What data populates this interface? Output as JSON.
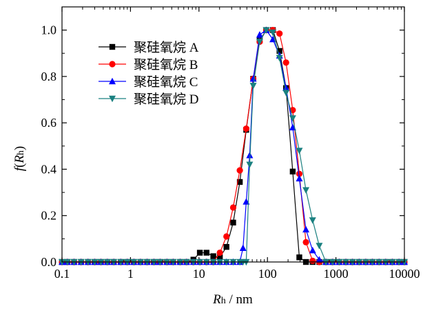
{
  "chart_data": {
    "type": "line",
    "xscale": "log",
    "xlim": [
      0.1,
      10000
    ],
    "ylim": [
      0.0,
      1.1
    ],
    "xticks": [
      0.1,
      1,
      10,
      100,
      1000,
      10000
    ],
    "xtick_labels": [
      "0.1",
      "1",
      "10",
      "100",
      "1000",
      "10000"
    ],
    "yticks": [
      0.0,
      0.2,
      0.4,
      0.6,
      0.8,
      1.0
    ],
    "ytick_labels": [
      "0.0",
      "0.2",
      "0.4",
      "0.6",
      "0.8",
      "1.0"
    ],
    "xlabel": {
      "var": "R",
      "sub": "h",
      "unit": " / nm"
    },
    "ylabel": {
      "f": "f",
      "open": "(",
      "var": "R",
      "sub": "h",
      "close": ")"
    },
    "legend_position": "top-left",
    "series": [
      {
        "name": "聚硅氧烷 A",
        "color": "#000000",
        "marker": "square",
        "x": [
          0.1,
          0.12,
          0.15,
          0.19,
          0.24,
          0.3,
          0.37,
          0.46,
          0.57,
          0.72,
          0.9,
          1.12,
          1.4,
          1.75,
          2.2,
          2.7,
          3.4,
          4.2,
          5.3,
          6.6,
          8.3,
          10.3,
          12.9,
          16.2,
          20.2,
          25.2,
          31.6,
          39.5,
          49,
          62,
          77,
          96,
          120,
          150,
          187,
          234,
          292,
          365,
          457,
          571,
          714,
          893,
          1117,
          1396,
          1745,
          2182,
          2727,
          3409,
          4262,
          5328,
          6660,
          8325,
          10000
        ],
        "y": [
          0,
          0,
          0,
          0,
          0,
          0,
          0,
          0,
          0,
          0,
          0,
          0,
          0,
          0,
          0,
          0,
          0,
          0,
          0,
          0,
          0.01,
          0.04,
          0.04,
          0.025,
          0.02,
          0.065,
          0.17,
          0.345,
          0.57,
          0.79,
          0.955,
          1.0,
          1.0,
          0.91,
          0.75,
          0.39,
          0.02,
          0,
          0,
          0,
          0,
          0,
          0,
          0,
          0,
          0,
          0,
          0,
          0,
          0,
          0,
          0,
          0
        ]
      },
      {
        "name": "聚硅氧烷 B",
        "color": "#ff0000",
        "marker": "circle",
        "x": [
          0.1,
          0.12,
          0.15,
          0.19,
          0.24,
          0.3,
          0.37,
          0.46,
          0.57,
          0.72,
          0.9,
          1.12,
          1.4,
          1.75,
          2.2,
          2.7,
          3.4,
          4.2,
          5.3,
          6.6,
          8.3,
          10.3,
          12.9,
          16.2,
          20.2,
          25.2,
          31.6,
          39.5,
          49,
          62,
          77,
          96,
          120,
          150,
          187,
          234,
          292,
          365,
          457,
          571,
          714,
          893,
          1117,
          1396,
          1745,
          2182,
          2727,
          3409,
          4262,
          5328,
          6660,
          8325,
          10000
        ],
        "y": [
          0,
          0,
          0,
          0,
          0,
          0,
          0,
          0,
          0,
          0,
          0,
          0,
          0,
          0,
          0,
          0,
          0,
          0,
          0,
          0,
          0,
          0,
          0,
          0,
          0.04,
          0.11,
          0.235,
          0.395,
          0.575,
          0.79,
          0.95,
          1.0,
          1.0,
          0.985,
          0.86,
          0.655,
          0.38,
          0.085,
          0.005,
          0,
          0,
          0,
          0,
          0,
          0,
          0,
          0,
          0,
          0,
          0,
          0,
          0,
          0
        ]
      },
      {
        "name": "聚硅氧烷 C",
        "color": "#0000ff",
        "marker": "triangle-up",
        "x": [
          0.1,
          0.12,
          0.15,
          0.19,
          0.24,
          0.3,
          0.37,
          0.46,
          0.57,
          0.72,
          0.9,
          1.12,
          1.4,
          1.75,
          2.2,
          2.7,
          3.4,
          4.2,
          5.3,
          6.6,
          8.3,
          10.3,
          12.9,
          16.2,
          20.2,
          25.2,
          31.6,
          39.5,
          44,
          49,
          55,
          62,
          77,
          96,
          120,
          150,
          187,
          234,
          292,
          365,
          457,
          571,
          714,
          893,
          1117,
          1396,
          1745,
          2182,
          2727,
          3409,
          4262,
          5328,
          6660,
          8325,
          10000
        ],
        "y": [
          0,
          0,
          0,
          0,
          0,
          0,
          0,
          0,
          0,
          0,
          0,
          0,
          0,
          0,
          0,
          0,
          0,
          0,
          0,
          0,
          0,
          0,
          0,
          0,
          0,
          0,
          0,
          0,
          0.06,
          0.26,
          0.46,
          0.79,
          0.98,
          1.0,
          0.96,
          0.89,
          0.75,
          0.58,
          0.36,
          0.14,
          0.05,
          0.01,
          0,
          0,
          0,
          0,
          0,
          0,
          0,
          0,
          0,
          0,
          0,
          0,
          0
        ]
      },
      {
        "name": "聚硅氧烷 D",
        "color": "#1a8080",
        "marker": "triangle-down",
        "x": [
          0.1,
          0.12,
          0.15,
          0.19,
          0.24,
          0.3,
          0.37,
          0.46,
          0.57,
          0.72,
          0.9,
          1.12,
          1.4,
          1.75,
          2.2,
          2.7,
          3.4,
          4.2,
          5.3,
          6.6,
          8.3,
          10.3,
          12.9,
          16.2,
          20.2,
          25.2,
          31.6,
          39.5,
          44,
          49,
          55,
          62,
          77,
          96,
          120,
          150,
          187,
          234,
          292,
          365,
          457,
          571,
          714,
          893,
          1117,
          1396,
          1745,
          2182,
          2727,
          3409,
          4262,
          5328,
          6660,
          8325,
          10000
        ],
        "y": [
          0,
          0,
          0,
          0,
          0,
          0,
          0,
          0,
          0,
          0,
          0,
          0,
          0,
          0,
          0,
          0,
          0,
          0,
          0,
          0,
          0,
          0,
          0,
          0,
          0,
          0,
          0,
          0,
          0,
          0,
          0.42,
          0.76,
          0.95,
          1.0,
          0.99,
          0.88,
          0.73,
          0.62,
          0.48,
          0.31,
          0.18,
          0.07,
          0,
          0,
          0,
          0,
          0,
          0,
          0,
          0,
          0,
          0,
          0,
          0,
          0
        ]
      }
    ]
  }
}
